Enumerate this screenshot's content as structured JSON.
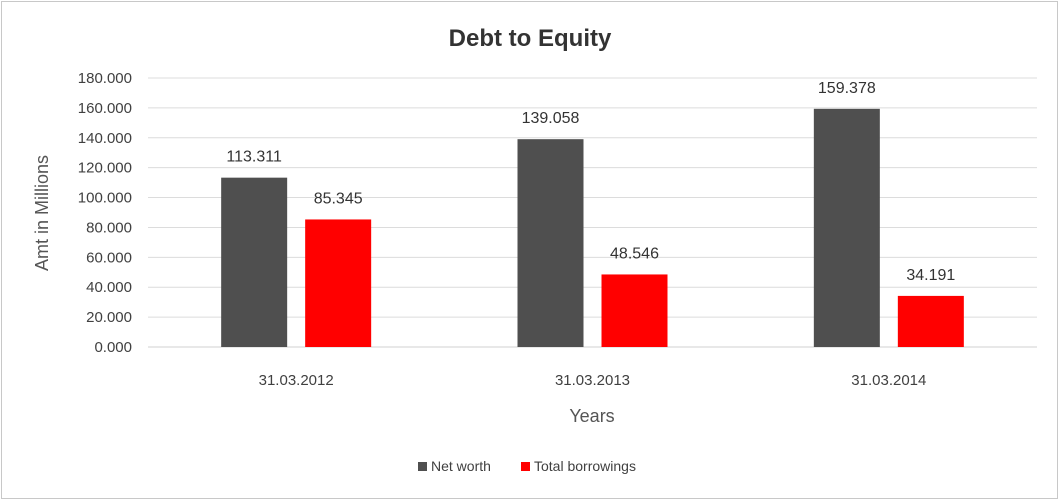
{
  "chart_data": {
    "type": "bar",
    "title": "Debt to Equity",
    "xlabel": "Years",
    "ylabel": "Amt in Millions",
    "categories": [
      "31.03.2012",
      "31.03.2013",
      "31.03.2014"
    ],
    "series": [
      {
        "name": "Net worth",
        "color": "#4f4f4f",
        "values": [
          113.311,
          139.058,
          159.378
        ],
        "labels": [
          "113.311",
          "139.058",
          "159.378"
        ]
      },
      {
        "name": "Total borrowings",
        "color": "#ff0000",
        "values": [
          85.345,
          48.546,
          34.191
        ],
        "labels": [
          "85.345",
          "48.546",
          "34.191"
        ]
      }
    ],
    "ylim": [
      0,
      180
    ],
    "yticks": [
      0,
      20,
      40,
      60,
      80,
      100,
      120,
      140,
      160,
      180
    ],
    "ytick_labels": [
      "0.000",
      "20.000",
      "40.000",
      "60.000",
      "80.000",
      "100.000",
      "120.000",
      "140.000",
      "160.000",
      "180.000"
    ],
    "grid": true,
    "legend": "bottom"
  }
}
